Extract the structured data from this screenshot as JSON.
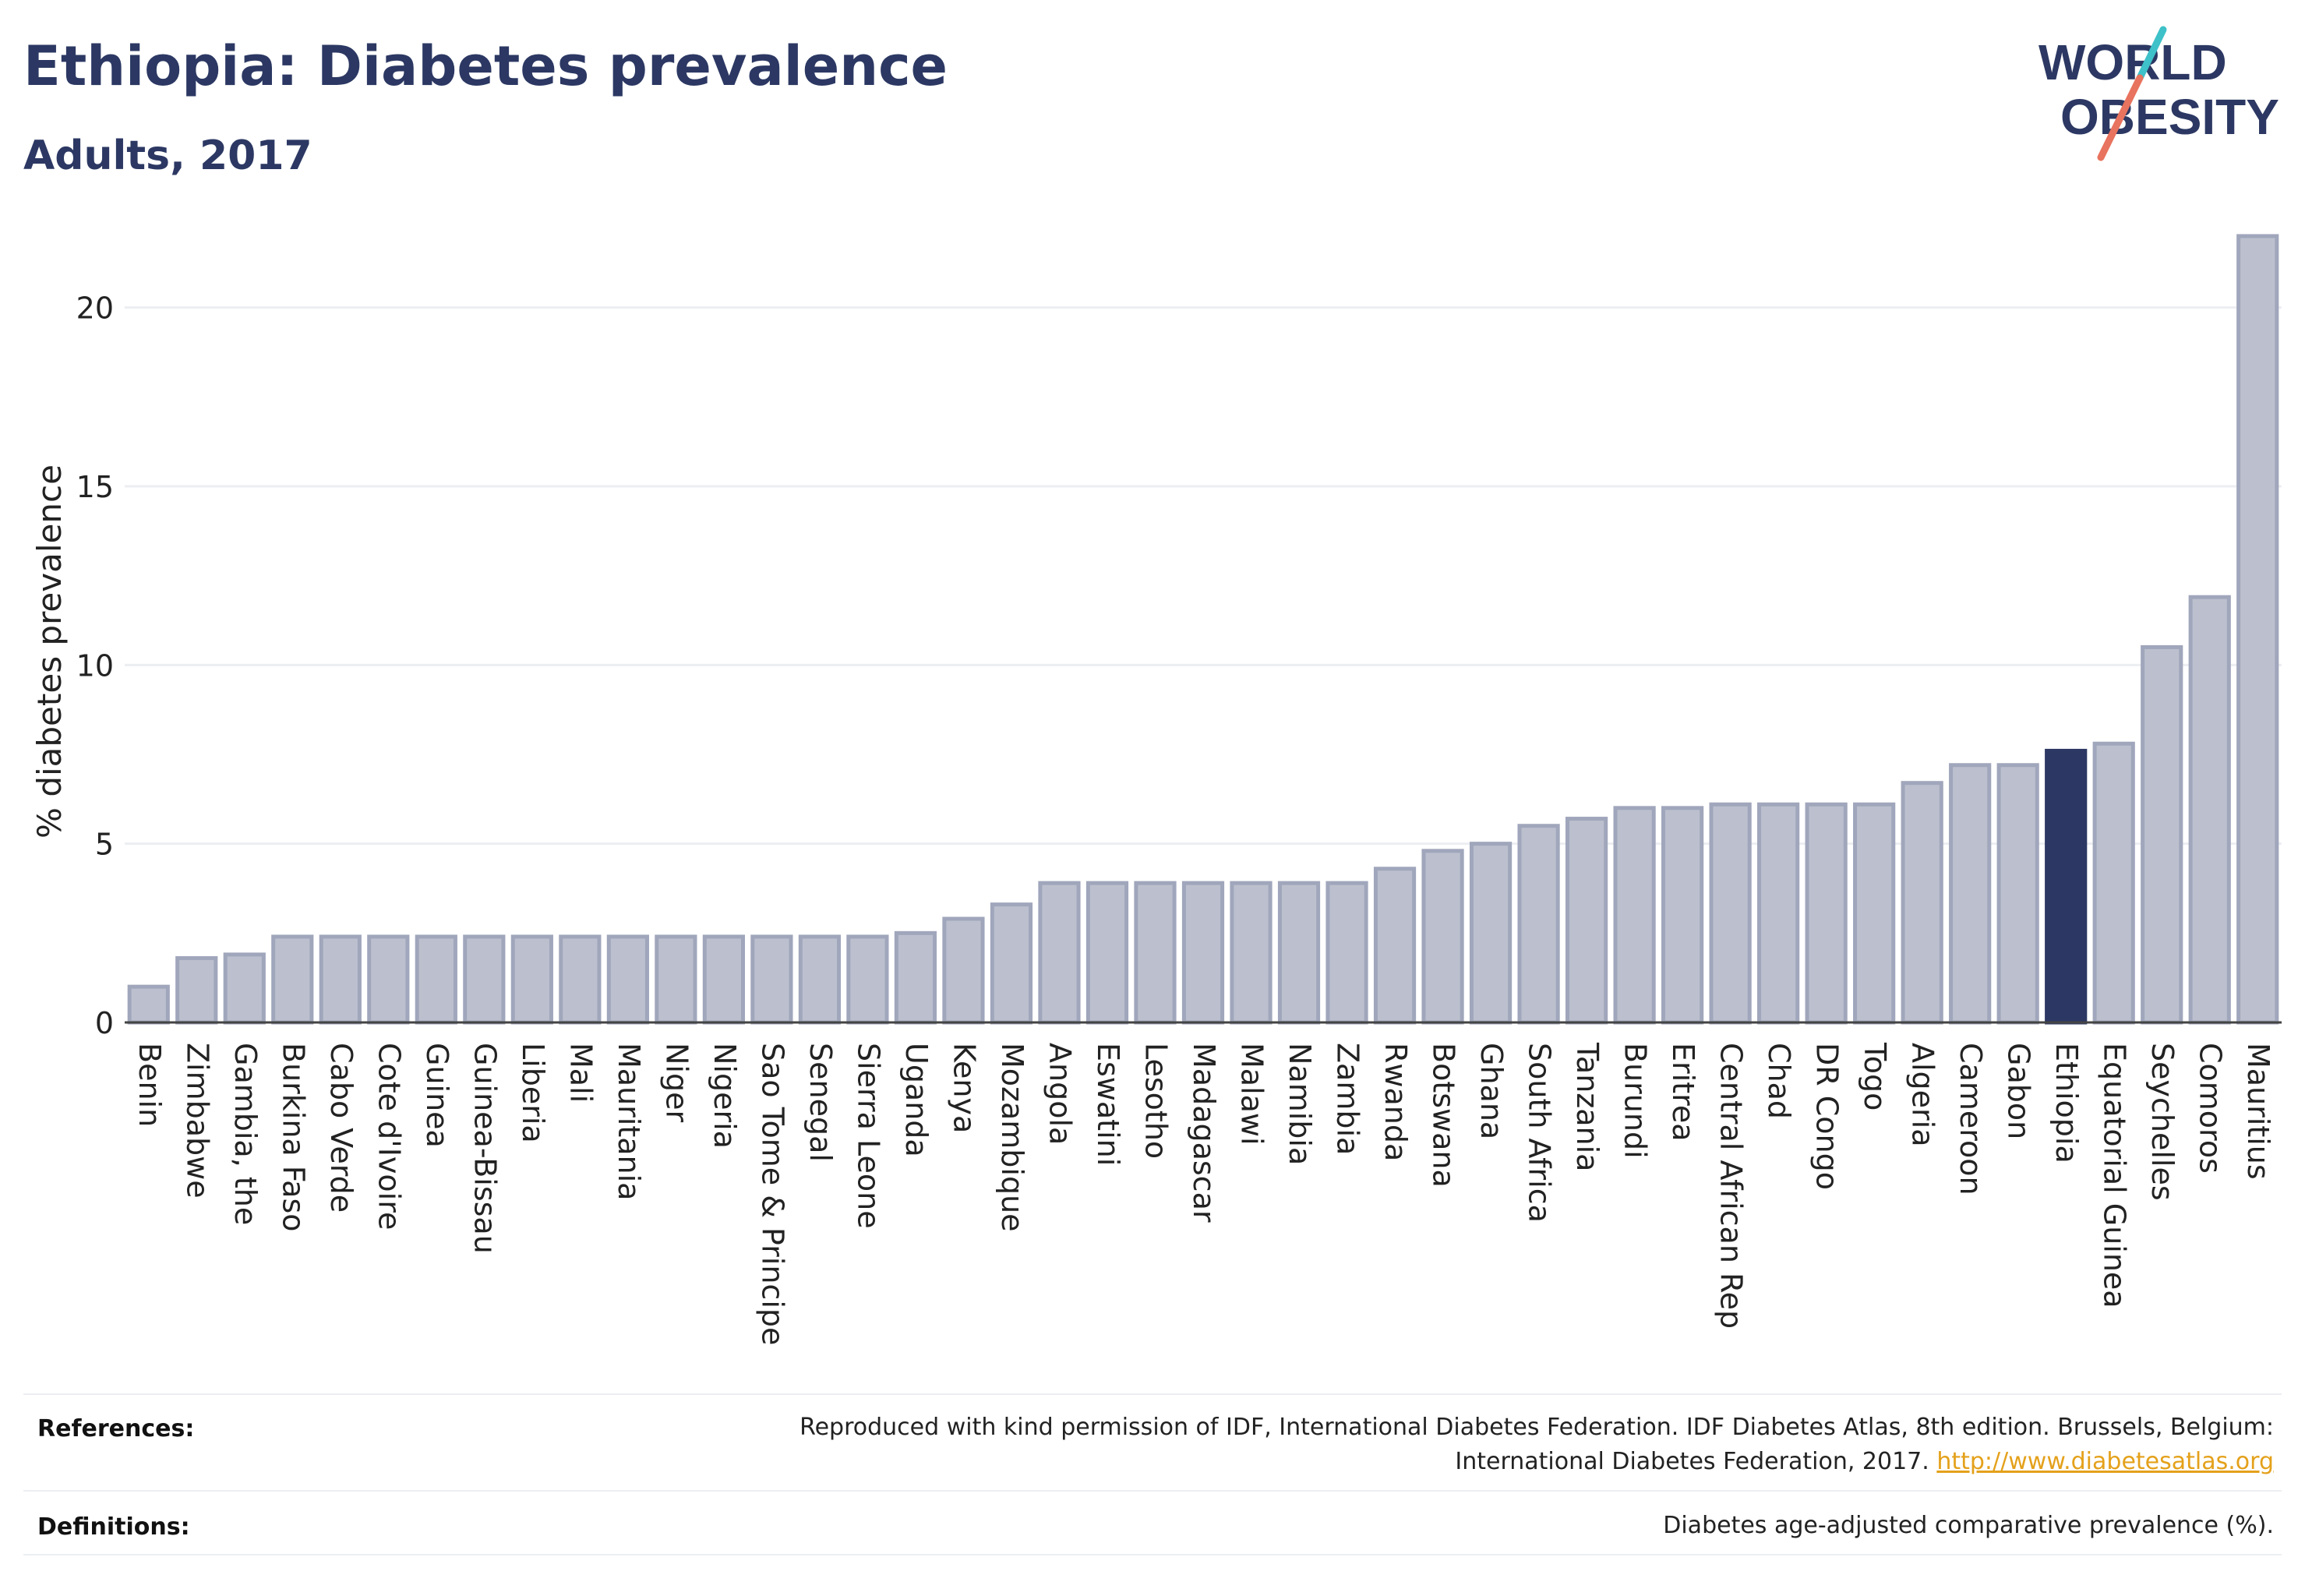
{
  "header": {
    "title": "Ethiopia: Diabetes prevalence",
    "subtitle": "Adults, 2017"
  },
  "logo": {
    "line1": "WORLD",
    "line2": "OBESITY"
  },
  "colors": {
    "title": "#2c3863",
    "bar_default": "#bcc0ce",
    "bar_default_stroke": "#a0a6bb",
    "bar_highlight": "#2c3863",
    "grid": "#eceef2",
    "link": "#e4a11b",
    "logo_teal": "#3ec1c9",
    "logo_coral": "#e8735e"
  },
  "chart_data": {
    "type": "bar",
    "ylabel": "% diabetes prevalence",
    "xlabel": "",
    "ylim": [
      0,
      22.5
    ],
    "yticks": [
      0,
      5,
      10,
      15,
      20
    ],
    "grid": true,
    "highlight": "Ethiopia",
    "categories": [
      "Benin",
      "Zimbabwe",
      "Gambia, the",
      "Burkina Faso",
      "Cabo Verde",
      "Cote d'Ivoire",
      "Guinea",
      "Guinea-Bissau",
      "Liberia",
      "Mali",
      "Mauritania",
      "Niger",
      "Nigeria",
      "Sao Tome & Principe",
      "Senegal",
      "Sierra Leone",
      "Uganda",
      "Kenya",
      "Mozambique",
      "Angola",
      "Eswatini",
      "Lesotho",
      "Madagascar",
      "Malawi",
      "Namibia",
      "Zambia",
      "Rwanda",
      "Botswana",
      "Ghana",
      "South Africa",
      "Tanzania",
      "Burundi",
      "Eritrea",
      "Central African Rep",
      "Chad",
      "DR Congo",
      "Togo",
      "Algeria",
      "Cameroon",
      "Gabon",
      "Ethiopia",
      "Equatorial Guinea",
      "Seychelles",
      "Comoros",
      "Mauritius"
    ],
    "values": [
      1.0,
      1.8,
      1.9,
      2.4,
      2.4,
      2.4,
      2.4,
      2.4,
      2.4,
      2.4,
      2.4,
      2.4,
      2.4,
      2.4,
      2.4,
      2.4,
      2.5,
      2.9,
      3.3,
      3.9,
      3.9,
      3.9,
      3.9,
      3.9,
      3.9,
      3.9,
      4.3,
      4.8,
      5.0,
      5.5,
      5.7,
      6.0,
      6.0,
      6.1,
      6.1,
      6.1,
      6.1,
      6.7,
      7.2,
      7.2,
      7.6,
      7.8,
      10.5,
      11.9,
      22.0
    ]
  },
  "footer": {
    "references_label": "References:",
    "references_line1": "Reproduced with kind permission of IDF, International Diabetes Federation. IDF Diabetes Atlas, 8th edition. Brussels, Belgium:",
    "references_line2": "International Diabetes Federation, 2017.",
    "references_link": "http://www.diabetesatlas.org",
    "definitions_label": "Definitions:",
    "definitions_text": "Diabetes age-adjusted comparative prevalence (%)."
  }
}
